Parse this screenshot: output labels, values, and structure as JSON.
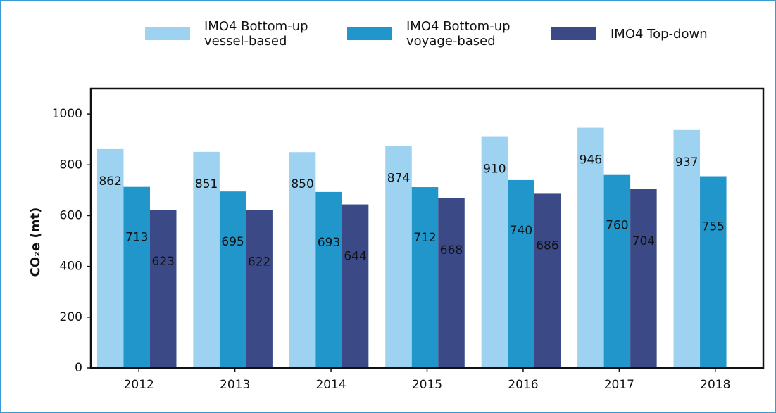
{
  "chart_data": {
    "type": "bar",
    "y_label": "CO₂e (mt)",
    "categories": [
      "2012",
      "2013",
      "2014",
      "2015",
      "2016",
      "2017",
      "2018"
    ],
    "series": [
      {
        "name": "IMO4 Bottom-up\nvessel-based",
        "color": "#9dd3f0",
        "values": [
          862,
          851,
          850,
          874,
          910,
          946,
          937
        ]
      },
      {
        "name": "IMO4 Bottom-up\nvoyage-based",
        "color": "#2196cb",
        "values": [
          713,
          695,
          693,
          712,
          740,
          760,
          755
        ]
      },
      {
        "name": "IMO4 Top-down",
        "color": "#3b4a86",
        "values": [
          623,
          622,
          644,
          668,
          686,
          704,
          null
        ]
      }
    ],
    "ylim": [
      0,
      1100
    ],
    "yticks": [
      0,
      200,
      400,
      600,
      800,
      1000
    ],
    "grid": false,
    "legend": "top"
  }
}
